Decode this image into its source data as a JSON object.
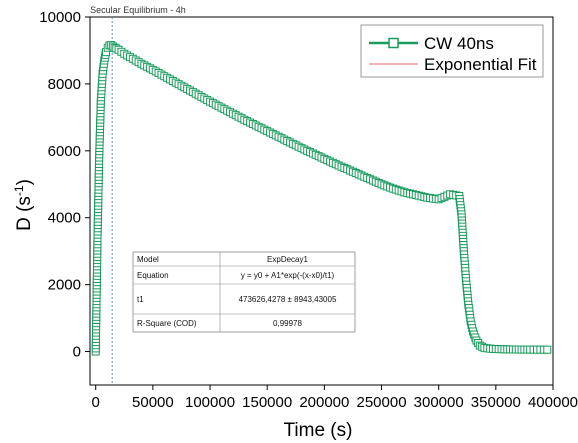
{
  "chart_data": {
    "type": "scatter",
    "xlabel": "Time (s)",
    "ylabel_main": "D (s",
    "ylabel_sup": "-1",
    "ylabel_close": ")",
    "xlim": [
      -5000,
      400000
    ],
    "ylim": [
      -1000,
      10000
    ],
    "xticks": [
      0,
      50000,
      100000,
      150000,
      200000,
      250000,
      300000,
      350000,
      400000
    ],
    "yticks": [
      0,
      2000,
      4000,
      6000,
      8000,
      10000
    ],
    "annotation": {
      "text": "Secular Equilibrium - 4h",
      "x": 14400
    },
    "legend": {
      "placement": "top-right",
      "entries": [
        {
          "name": "CW 40ns",
          "color": "#1a9b5e",
          "marker": "square-open"
        },
        {
          "name": "Exponential Fit",
          "color": "#e06666",
          "marker": "line"
        }
      ]
    },
    "series": [
      {
        "name": "CW 40ns",
        "color": "#1a9b5e",
        "x": [
          0,
          1500,
          3000,
          4500,
          6000,
          7500,
          9000,
          10500,
          12000,
          13500,
          15000,
          16500,
          18000,
          20000,
          25000,
          30000,
          35000,
          40000,
          50000,
          60000,
          70000,
          80000,
          90000,
          100000,
          110000,
          120000,
          130000,
          140000,
          150000,
          160000,
          170000,
          180000,
          190000,
          200000,
          210000,
          220000,
          230000,
          240000,
          250000,
          260000,
          270000,
          280000,
          290000,
          300000,
          310000,
          318000,
          320000,
          322000,
          324000,
          326000,
          328000,
          330000,
          333000,
          336000,
          340000,
          345000,
          350000,
          360000,
          370000,
          380000,
          395000
        ],
        "y": [
          0,
          3300,
          5800,
          7500,
          8300,
          8700,
          8950,
          9080,
          9150,
          9160,
          9120,
          9080,
          9060,
          9020,
          8900,
          8800,
          8700,
          8600,
          8420,
          8230,
          8040,
          7850,
          7660,
          7470,
          7290,
          7110,
          6930,
          6760,
          6590,
          6420,
          6250,
          6080,
          5920,
          5760,
          5600,
          5450,
          5300,
          5150,
          5000,
          4870,
          4760,
          4680,
          4600,
          4550,
          4700,
          4650,
          4100,
          3000,
          2100,
          1400,
          900,
          600,
          330,
          180,
          110,
          85,
          75,
          65,
          60,
          58,
          55
        ]
      }
    ],
    "fit_table": {
      "rows": [
        {
          "label": "Model",
          "value": "ExpDecay1"
        },
        {
          "label": "Equation",
          "value": "y = y0 + A1*exp(-(x-x0)/t1)"
        },
        {
          "label": "t1",
          "value": "473626,4278 ± 8943,43005"
        },
        {
          "label": "R-Square (COD)",
          "value": "0,99978"
        }
      ]
    }
  }
}
